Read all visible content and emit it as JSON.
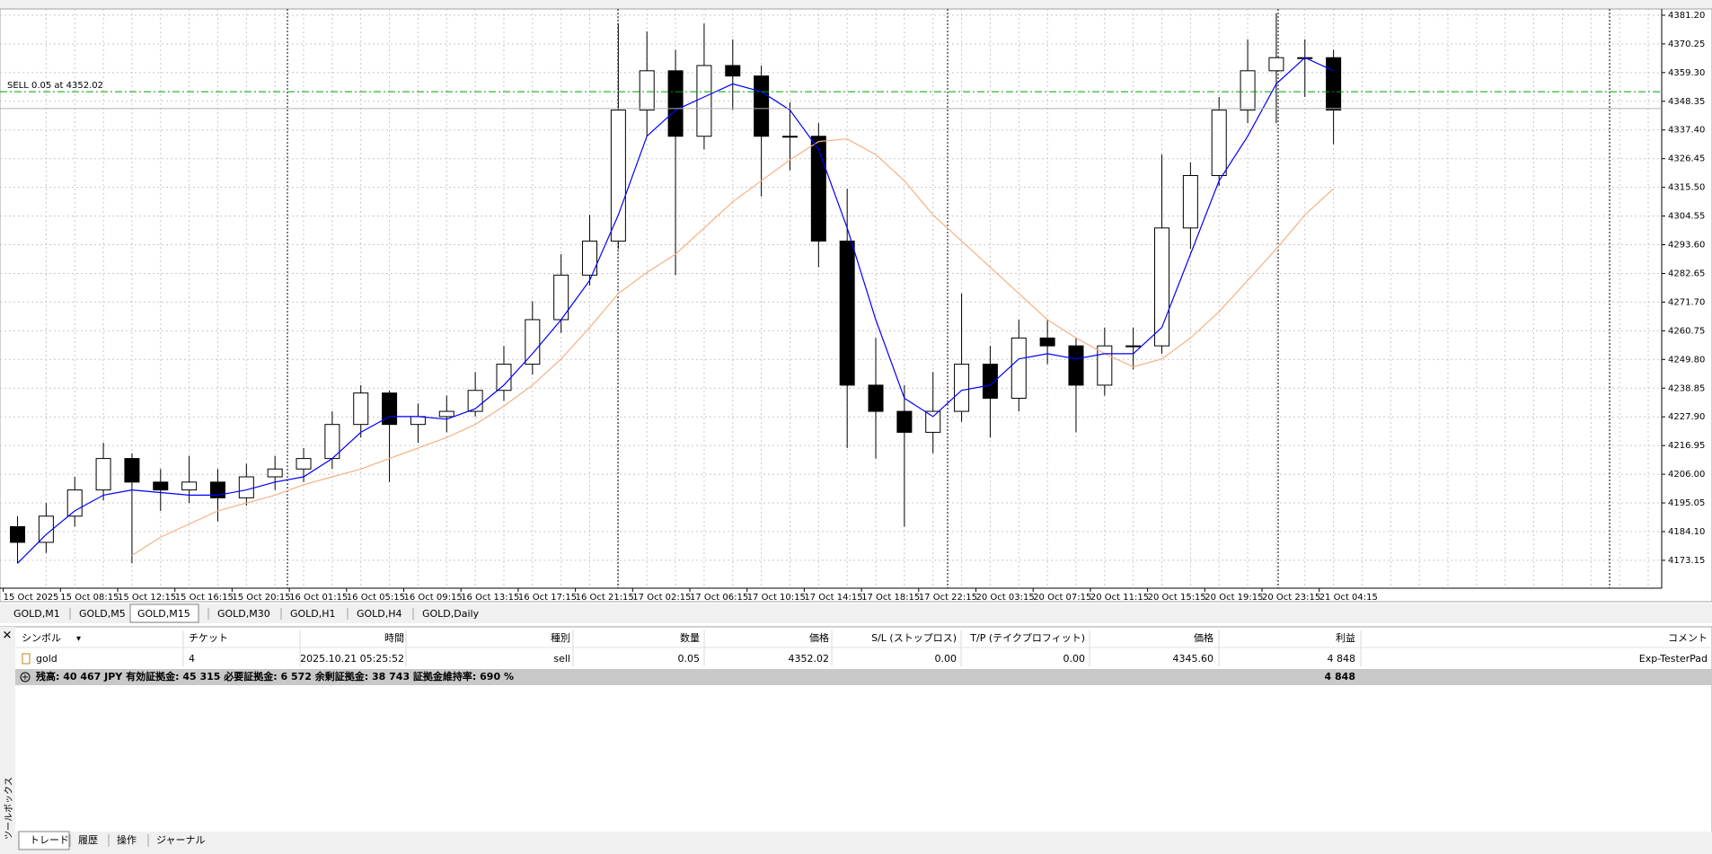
{
  "chart_data": {
    "type": "candlestick",
    "categories": [
      "15 Oct 2025",
      null,
      "15 Oct 08:15",
      null,
      "15 Oct 12:15",
      null,
      "15 Oct 16:15",
      null,
      "15 Oct 20:15",
      null,
      "16 Oct 01:15",
      null,
      "16 Oct 05:15",
      null,
      "16 Oct 09:15",
      null,
      "16 Oct 13:15",
      null,
      "16 Oct 17:15",
      null,
      "16 Oct 21:15",
      null,
      "17 Oct 02:15",
      null,
      "17 Oct 06:15",
      null,
      "17 Oct 10:15",
      null,
      "17 Oct 14:15",
      null,
      "17 Oct 18:15",
      null,
      "17 Oct 22:15",
      null,
      "20 Oct 03:15",
      null,
      "20 Oct 07:15",
      null,
      "20 Oct 11:15",
      null,
      "20 Oct 15:15",
      null,
      "20 Oct 19:15",
      null,
      "20 Oct 23:15",
      null,
      "21 Oct 04:15"
    ],
    "open": [
      4186,
      4180,
      4190,
      4200,
      4212,
      4203,
      4200,
      4203,
      4197,
      4205,
      4208,
      4212,
      4225,
      4237,
      4225,
      4228,
      4230,
      4238,
      4248,
      4265,
      4282,
      4295,
      4345,
      4360,
      4335,
      4362,
      4358,
      4335,
      4335,
      4295,
      4240,
      4230,
      4222,
      4230,
      4248,
      4235,
      4258,
      4255,
      4240,
      4255,
      4255,
      4300,
      4320,
      4345,
      4360,
      4365,
      4365
    ],
    "high": [
      4190,
      4195,
      4205,
      4218,
      4214,
      4208,
      4213,
      4208,
      4210,
      4213,
      4216,
      4230,
      4240,
      4238,
      4233,
      4236,
      4245,
      4255,
      4272,
      4290,
      4305,
      4378,
      4375,
      4368,
      4378,
      4372,
      4362,
      4348,
      4340,
      4315,
      4258,
      4240,
      4245,
      4275,
      4255,
      4265,
      4265,
      4258,
      4262,
      4262,
      4328,
      4325,
      4350,
      4372,
      4382,
      4372,
      4368
    ],
    "low": [
      4172,
      4176,
      4186,
      4196,
      4172,
      4192,
      4195,
      4188,
      4194,
      4200,
      4203,
      4208,
      4220,
      4203,
      4218,
      4222,
      4228,
      4234,
      4244,
      4260,
      4278,
      4292,
      4335,
      4282,
      4330,
      4345,
      4312,
      4322,
      4285,
      4216,
      4212,
      4186,
      4214,
      4226,
      4220,
      4230,
      4248,
      4222,
      4236,
      4246,
      4252,
      4292,
      4316,
      4340,
      4340,
      4350,
      4332
    ],
    "close": [
      4180,
      4190,
      4200,
      4212,
      4203,
      4200,
      4203,
      4197,
      4205,
      4208,
      4212,
      4225,
      4237,
      4225,
      4228,
      4230,
      4238,
      4248,
      4265,
      4282,
      4295,
      4345,
      4360,
      4335,
      4362,
      4358,
      4335,
      4335,
      4295,
      4240,
      4230,
      4222,
      4230,
      4248,
      4235,
      4258,
      4255,
      4240,
      4255,
      4255,
      4300,
      4320,
      4345,
      4360,
      4365,
      4365,
      4345
    ],
    "ma_fast": {
      "color": "#0000ff",
      "values": [
        4172,
        4183,
        4192,
        4198,
        4200,
        4199,
        4198,
        4198,
        4200,
        4203,
        4205,
        4212,
        4222,
        4228,
        4228,
        4227,
        4231,
        4240,
        4252,
        4265,
        4280,
        4305,
        4335,
        4345,
        4350,
        4355,
        4352,
        4345,
        4330,
        4300,
        4265,
        4235,
        4228,
        4238,
        4240,
        4250,
        4252,
        4250,
        4252,
        4252,
        4262,
        4290,
        4318,
        4335,
        4355,
        4365,
        4360
      ]
    },
    "ma_slow": {
      "color": "#f4b183",
      "values": [
        null,
        null,
        null,
        null,
        4175,
        4182,
        4187,
        4192,
        4195,
        4198,
        4202,
        4205,
        4208,
        4212,
        4216,
        4220,
        4225,
        4232,
        4240,
        4250,
        4262,
        4275,
        4283,
        4290,
        4300,
        4310,
        4318,
        4326,
        4333,
        4334,
        4328,
        4318,
        4305,
        4295,
        4285,
        4275,
        4265,
        4258,
        4252,
        4247,
        4250,
        4258,
        4268,
        4280,
        4292,
        4305,
        4315
      ]
    },
    "ylim": [
      4162.5,
      4382.9
    ],
    "yticks": [
      {
        "value": 4381.2,
        "label": "4381.20"
      },
      4370.25,
      {
        "value": 4359.3,
        "label": "4359.30"
      },
      4348.35,
      {
        "value": 4337.4,
        "label": "4337.40"
      },
      4326.45,
      {
        "value": 4315.5,
        "label": "4315.50"
      },
      4304.55,
      {
        "value": 4293.6,
        "label": "4293.60"
      },
      4282.65,
      {
        "value": 4271.7,
        "label": "4271.70"
      },
      4260.75,
      {
        "value": 4249.8,
        "label": "4249.80"
      },
      4238.85,
      {
        "value": 4227.9,
        "label": "4227.90"
      },
      4216.95,
      {
        "value": 4206,
        "label": "4206.00"
      },
      4195.05,
      {
        "value": 4184.1,
        "label": "4184.10"
      },
      4173.15
    ],
    "grid": true,
    "order": {
      "label": "SELL 0.05 at 4352.02",
      "price": 4352.02,
      "color": "#00a000"
    },
    "bid": 4345.6
  },
  "chart_tabs": [
    "GOLD,M1",
    "GOLD,M5",
    "GOLD,M15",
    "GOLD,M30",
    "GOLD,H1",
    "GOLD,H4",
    "GOLD,Daily"
  ],
  "active_chart_tab": 2,
  "terminal": {
    "headers": [
      "シンボル",
      "チケット",
      "時間",
      "種別",
      "数量",
      "価格",
      "S/L (ストップロス)",
      "T/P (テイクプロフィット)",
      "価格",
      "利益",
      "コメント"
    ],
    "rows": [
      [
        "gold",
        "4",
        "2025.10.21 05:25:52",
        "sell",
        "0.05",
        "4352.02",
        "0.00",
        "0.00",
        "4345.60",
        "4 848",
        "Exp-TesterPad"
      ]
    ],
    "summary": {
      "text": "残高: 40 467 JPY  有効証拠金: 45 315  必要証拠金: 6 572  余剰証拠金: 38 743  証拠金維持率: 690 %",
      "profit": "4 848"
    },
    "tabs": [
      "トレード",
      "履歴",
      "操作",
      "ジャーナル"
    ],
    "side_label": "ツールボックス"
  }
}
